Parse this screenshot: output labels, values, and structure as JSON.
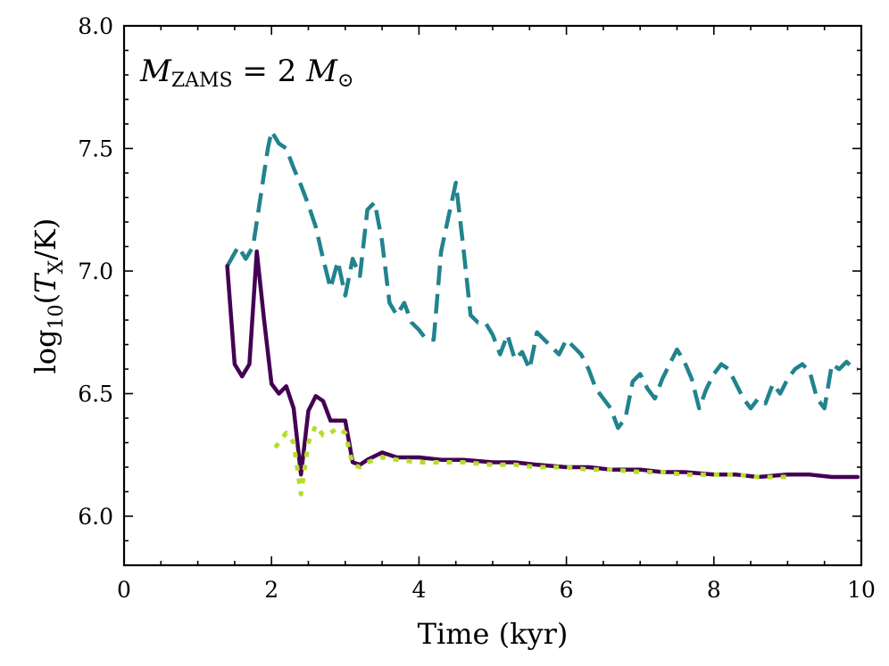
{
  "chart_data": {
    "type": "line",
    "xlabel": "Time (kyr)",
    "ylabel": {
      "prefix": "log",
      "sub": "10",
      "open": "(",
      "var": "T",
      "var_sub": "X",
      "unit": "/K)"
    },
    "annotation": {
      "var": "M",
      "sub": "ZAMS",
      "eq": " = 2 ",
      "var2": "M",
      "sub2": "⊙"
    },
    "xlim": [
      0,
      10
    ],
    "ylim": [
      5.8,
      8.0
    ],
    "xticks": [
      "0",
      "2",
      "4",
      "6",
      "8",
      "10"
    ],
    "yticks": [
      "6.0",
      "6.5",
      "7.0",
      "7.5",
      "8.0"
    ],
    "series": [
      {
        "name": "dashed-teal",
        "color": "#21838e",
        "style": "dashed",
        "x": [
          1.4,
          1.55,
          1.65,
          1.75,
          1.85,
          1.95,
          2.0,
          2.1,
          2.2,
          2.3,
          2.4,
          2.5,
          2.6,
          2.7,
          2.8,
          2.9,
          3.0,
          3.1,
          3.2,
          3.3,
          3.4,
          3.5,
          3.6,
          3.7,
          3.8,
          3.9,
          4.0,
          4.1,
          4.2,
          4.3,
          4.4,
          4.5,
          4.6,
          4.7,
          4.8,
          4.9,
          5.0,
          5.1,
          5.2,
          5.3,
          5.4,
          5.5,
          5.6,
          5.7,
          5.8,
          5.9,
          6.0,
          6.1,
          6.2,
          6.3,
          6.4,
          6.5,
          6.6,
          6.7,
          6.8,
          6.9,
          7.0,
          7.1,
          7.2,
          7.3,
          7.4,
          7.5,
          7.6,
          7.7,
          7.8,
          7.9,
          8.0,
          8.1,
          8.2,
          8.3,
          8.4,
          8.5,
          8.6,
          8.7,
          8.8,
          8.9,
          9.0,
          9.1,
          9.2,
          9.3,
          9.4,
          9.5,
          9.6,
          9.7,
          9.8,
          9.9
        ],
        "y": [
          7.02,
          7.1,
          7.05,
          7.1,
          7.3,
          7.5,
          7.57,
          7.52,
          7.5,
          7.42,
          7.35,
          7.27,
          7.18,
          7.05,
          6.93,
          7.04,
          6.9,
          7.05,
          6.98,
          7.25,
          7.28,
          7.12,
          6.87,
          6.82,
          6.87,
          6.79,
          6.76,
          6.72,
          6.72,
          7.08,
          7.22,
          7.36,
          7.1,
          6.82,
          6.79,
          6.79,
          6.74,
          6.66,
          6.74,
          6.64,
          6.67,
          6.6,
          6.75,
          6.72,
          6.69,
          6.66,
          6.72,
          6.69,
          6.66,
          6.6,
          6.52,
          6.48,
          6.44,
          6.36,
          6.4,
          6.55,
          6.58,
          6.52,
          6.48,
          6.56,
          6.62,
          6.68,
          6.63,
          6.56,
          6.44,
          6.52,
          6.58,
          6.62,
          6.6,
          6.54,
          6.48,
          6.44,
          6.48,
          6.46,
          6.54,
          6.5,
          6.56,
          6.6,
          6.62,
          6.59,
          6.48,
          6.44,
          6.62,
          6.6,
          6.63,
          6.6
        ],
        "x_end": 9.95,
        "y_end": 6.6
      },
      {
        "name": "solid-purple",
        "color": "#440154",
        "style": "solid",
        "x": [
          1.4,
          1.5,
          1.6,
          1.7,
          1.8,
          1.9,
          2.0,
          2.1,
          2.2,
          2.3,
          2.4,
          2.5,
          2.6,
          2.7,
          2.8,
          2.9,
          3.0,
          3.1,
          3.2,
          3.3,
          3.5,
          3.7,
          4.0,
          4.3,
          4.6,
          5.0,
          5.3,
          5.6,
          6.0,
          6.3,
          6.6,
          7.0,
          7.3,
          7.6,
          8.0,
          8.3,
          8.6,
          9.0,
          9.3,
          9.6,
          9.95
        ],
        "y": [
          7.02,
          6.62,
          6.57,
          6.62,
          7.08,
          6.8,
          6.54,
          6.5,
          6.53,
          6.44,
          6.17,
          6.43,
          6.49,
          6.47,
          6.39,
          6.39,
          6.39,
          6.22,
          6.21,
          6.23,
          6.26,
          6.24,
          6.24,
          6.23,
          6.23,
          6.22,
          6.22,
          6.21,
          6.2,
          6.2,
          6.19,
          6.19,
          6.18,
          6.18,
          6.17,
          6.17,
          6.16,
          6.17,
          6.17,
          6.16,
          6.16
        ]
      },
      {
        "name": "dotted-green",
        "color": "#b5de2b",
        "style": "dotted",
        "x": [
          2.05,
          2.2,
          2.3,
          2.4,
          2.5,
          2.6,
          2.7,
          2.8,
          2.9,
          3.0,
          3.1,
          3.2,
          3.3,
          3.5,
          3.7,
          4.0,
          4.3,
          4.6,
          5.0,
          5.3,
          5.6,
          6.0,
          6.3,
          6.6,
          7.0,
          7.3,
          7.6,
          8.0,
          8.3,
          8.6,
          9.0
        ],
        "y": [
          6.28,
          6.34,
          6.3,
          6.09,
          6.3,
          6.37,
          6.33,
          6.34,
          6.36,
          6.34,
          6.21,
          6.2,
          6.22,
          6.24,
          6.23,
          6.22,
          6.22,
          6.22,
          6.21,
          6.21,
          6.2,
          6.2,
          6.19,
          6.19,
          6.18,
          6.18,
          6.17,
          6.17,
          6.17,
          6.16,
          6.16
        ]
      }
    ]
  }
}
